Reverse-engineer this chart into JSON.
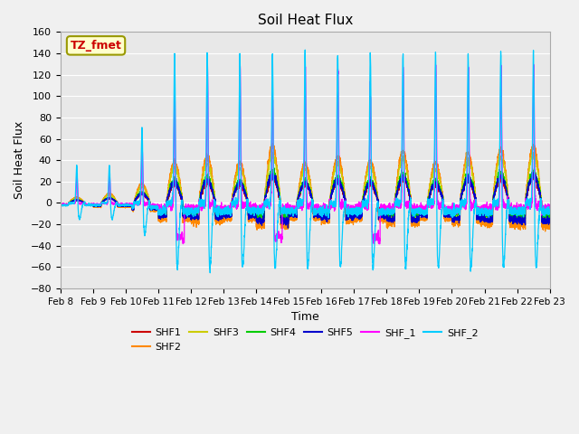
{
  "title": "Soil Heat Flux",
  "xlabel": "Time",
  "ylabel": "Soil Heat Flux",
  "ylim": [
    -80,
    160
  ],
  "yticks": [
    -80,
    -60,
    -40,
    -20,
    0,
    20,
    40,
    60,
    80,
    100,
    120,
    140,
    160
  ],
  "date_labels": [
    "Feb 8",
    "Feb 9",
    "Feb 10",
    "Feb 11",
    "Feb 12",
    "Feb 13",
    "Feb 14",
    "Feb 15",
    "Feb 16",
    "Feb 17",
    "Feb 18",
    "Feb 19",
    "Feb 20",
    "Feb 21",
    "Feb 22",
    "Feb 23"
  ],
  "annotation_text": "TZ_fmet",
  "annotation_color": "#cc0000",
  "annotation_bg": "#ffffcc",
  "annotation_border": "#999900",
  "series_colors": {
    "SHF1": "#cc0000",
    "SHF2": "#ff8800",
    "SHF3": "#cccc00",
    "SHF4": "#00cc00",
    "SHF5": "#0000cc",
    "SHF_1": "#ff00ff",
    "SHF_2": "#00ccff"
  },
  "bg_color": "#e8e8e8",
  "fig_bg": "#f0f0f0",
  "n_points": 3600,
  "days": 15,
  "seed": 42
}
